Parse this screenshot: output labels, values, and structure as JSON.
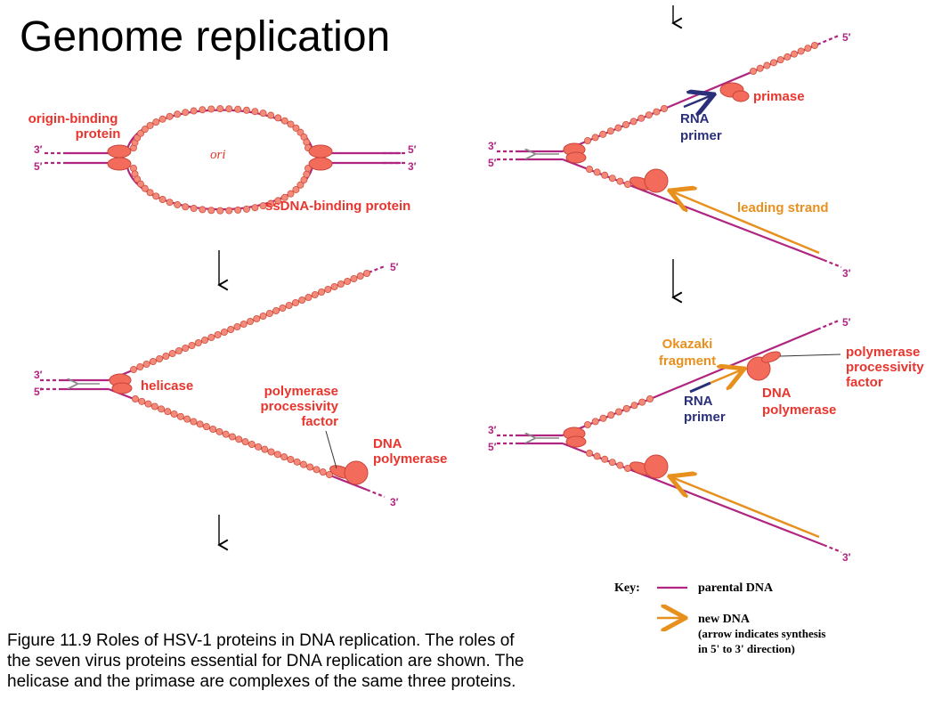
{
  "title": "Genome replication",
  "caption_lines": [
    "Figure 11.9 Roles of HSV-1 proteins in DNA replication. The roles of",
    "the seven virus proteins essential for DNA replication are shown. The",
    "helicase and the primase are complexes of the same three proteins."
  ],
  "colors": {
    "parental_dna": "#b0257f",
    "new_dna": "#e8901e",
    "protein": "#f26b5b",
    "label_red": "#e8352e",
    "label_blue": "#2a2f7a"
  },
  "panel1": {
    "origin_binding_line1": "origin-binding",
    "origin_binding_line2": "protein",
    "ori": "ori",
    "ssdna": "ssDNA-binding protein",
    "left_top": "3′",
    "left_bottom": "5′",
    "right_top": "5′",
    "right_bottom": "3′"
  },
  "panel2": {
    "helicase": "helicase",
    "ppf_line1": "polymerase",
    "ppf_line2": "processivity",
    "ppf_line3": "factor",
    "dnapol_line1": "DNA",
    "dnapol_line2": "polymerase",
    "left_top": "3′",
    "left_bottom": "5′",
    "end_top": "5′",
    "end_bottom": "3′"
  },
  "panel3": {
    "primase": "primase",
    "rna_line1": "RNA",
    "rna_line2": "primer",
    "leading": "leading strand",
    "left_top": "3′",
    "left_bottom": "5′",
    "end_top": "5′",
    "end_bottom": "3′"
  },
  "panel4": {
    "okazaki_line1": "Okazaki",
    "okazaki_line2": "fragment",
    "ppf_line1": "polymerase",
    "ppf_line2": "processivity",
    "ppf_line3": "factor",
    "rna_line1": "RNA",
    "rna_line2": "primer",
    "dnapol_line1": "DNA",
    "dnapol_line2": "polymerase",
    "left_top": "3′",
    "left_bottom": "5′",
    "end_top": "5′",
    "end_bottom": "3′"
  },
  "key": {
    "label": "Key:",
    "parental": "parental DNA",
    "new_line1": "new DNA",
    "new_line2": "(arrow indicates synthesis",
    "new_line3": "in 5' to 3' direction)"
  }
}
